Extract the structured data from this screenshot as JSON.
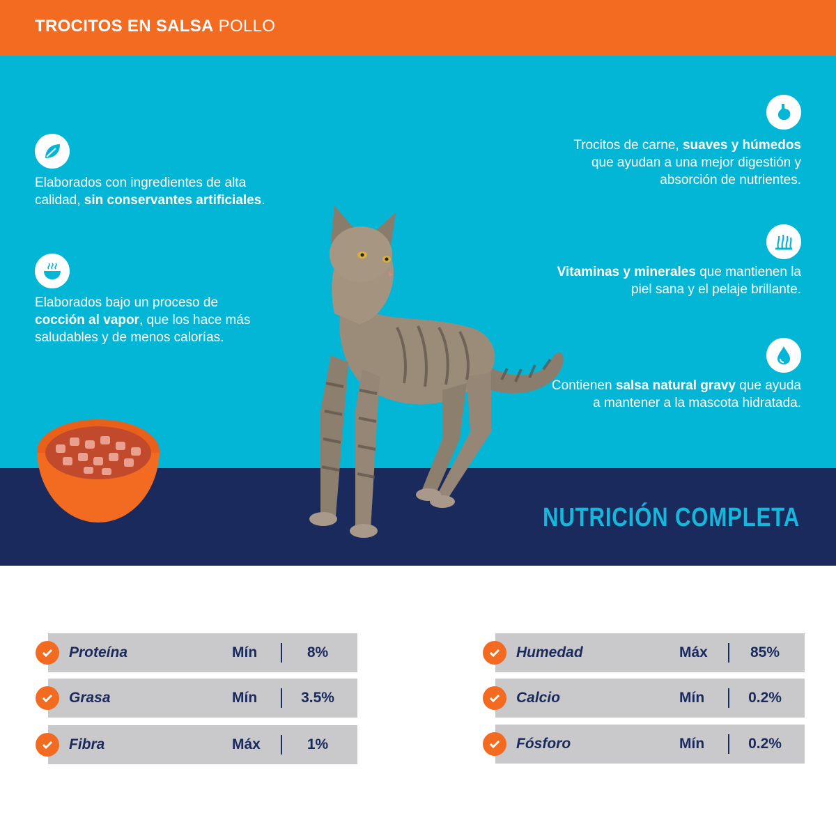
{
  "header": {
    "title_bold": "TROCITOS EN SALSA",
    "title_light": " POLLO"
  },
  "features_left": [
    {
      "icon": "leaf-icon",
      "pre": "Elaborados con ingredientes de alta calidad, ",
      "bold": "sin conservantes artificiales",
      "post": "."
    },
    {
      "icon": "steaming-bowl-icon",
      "pre": "Elaborados bajo un proceso de ",
      "bold": "cocción al vapor",
      "post": ", que los hace más saludables y de menos calorías."
    }
  ],
  "features_right": [
    {
      "icon": "stomach-icon",
      "pre": "Trocitos de carne, ",
      "bold": "suaves y húmedos",
      "post": " que ayudan a una mejor digestión y absorción de nutrientes."
    },
    {
      "icon": "fur-icon",
      "pre": "",
      "bold": "Vitaminas y minerales",
      "post": " que mantienen la piel sana y el pelaje brillante."
    },
    {
      "icon": "water-drop-icon",
      "pre": "Contienen ",
      "bold": "salsa natural gravy",
      "post": " que ayuda a mantener a la mascota hidratada."
    }
  ],
  "band": {
    "title": "NUTRICIÓN COMPLETA"
  },
  "nutrition_left": [
    {
      "name": "Proteína",
      "qualifier": "Mín",
      "value": "8%"
    },
    {
      "name": "Grasa",
      "qualifier": "Mín",
      "value": "3.5%"
    },
    {
      "name": "Fibra",
      "qualifier": "Máx",
      "value": "1%"
    }
  ],
  "nutrition_right": [
    {
      "name": "Humedad",
      "qualifier": "Máx",
      "value": "85%"
    },
    {
      "name": "Calcio",
      "qualifier": "Mín",
      "value": "0.2%"
    },
    {
      "name": "Fósforo",
      "qualifier": "Mín",
      "value": "0.2%"
    }
  ],
  "colors": {
    "orange": "#f26b21",
    "cyan": "#04b6d6",
    "navy": "#1b2a5c",
    "row_gray": "#c9c9cc"
  }
}
